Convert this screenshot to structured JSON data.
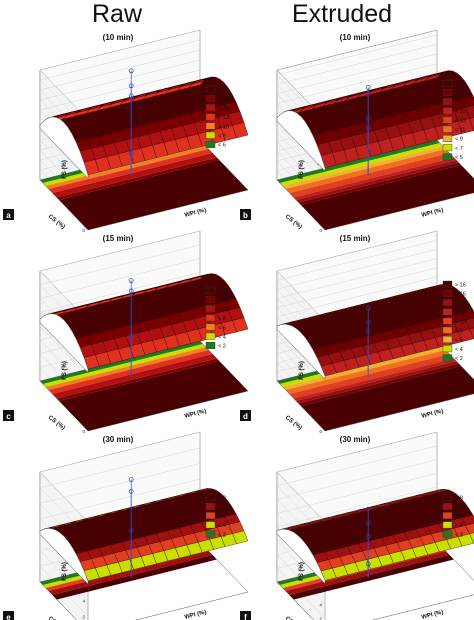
{
  "figure": {
    "column_titles": [
      "Raw",
      "Extruded"
    ]
  },
  "chart_data": [
    {
      "type": "surface3d",
      "panel_letter": "a",
      "title": "(10 min)",
      "zlabel": "FS (%)",
      "xlabel": "WPI (%)",
      "ylabel": "CS (%)",
      "zlim": [
        0,
        22
      ],
      "z_ticks": [
        0,
        2,
        4,
        6,
        8,
        10,
        12,
        14,
        16,
        18,
        20,
        22
      ],
      "surface_peak": 16.5,
      "surface_edge": 11,
      "legend": [
        "> 16",
        "< 16",
        "< 14",
        "< 12",
        "< 10",
        "< 8",
        "< 6"
      ],
      "legend_colors": [
        "#4a0000",
        "#7a0000",
        "#b01010",
        "#e03020",
        "#f08020",
        "#c8e000",
        "#1d7a1d"
      ],
      "observed_points": [
        21,
        16,
        18,
        4.5
      ],
      "legend_placement": "right"
    },
    {
      "type": "surface3d",
      "panel_letter": "b",
      "title": "(10 min)",
      "zlabel": "FS (%)",
      "xlabel": "WPI (%)",
      "ylabel": "CS (%)",
      "zlim": [
        0,
        23
      ],
      "z_ticks": [
        0,
        2,
        4,
        6,
        8,
        10,
        12,
        14,
        16,
        18,
        20,
        22
      ],
      "surface_peak": 18.5,
      "surface_edge": 13,
      "legend": [
        "> 20",
        "< 19",
        "< 17",
        "< 15",
        "< 13",
        "< 11",
        "< 9",
        "< 7",
        "< 5"
      ],
      "legend_colors": [
        "#4a0000",
        "#6e0000",
        "#961010",
        "#c02020",
        "#e04020",
        "#f07020",
        "#f0b030",
        "#c8e000",
        "#1d7a1d"
      ],
      "observed_points": [
        18.5,
        17,
        12,
        10
      ],
      "legend_placement": "right"
    },
    {
      "type": "surface3d",
      "panel_letter": "c",
      "title": "(15 min)",
      "zlabel": "FS (%)",
      "xlabel": "WPI (%)",
      "ylabel": "CS (%)",
      "zlim": [
        0,
        16
      ],
      "z_ticks": [
        0,
        2,
        4,
        6,
        8,
        10,
        12,
        14,
        16
      ],
      "surface_peak": 12.5,
      "surface_edge": 9,
      "legend": [
        "> 12",
        "< 12",
        "< 10",
        "< 8",
        "< 6",
        "< 4",
        "< 2"
      ],
      "legend_colors": [
        "#4a0000",
        "#7a0000",
        "#b01010",
        "#e03020",
        "#f08020",
        "#c8e000",
        "#1d7a1d"
      ],
      "observed_points": [
        14,
        12.5,
        6
      ],
      "legend_placement": "right"
    },
    {
      "type": "surface3d",
      "panel_letter": "d",
      "title": "(15 min)",
      "zlabel": "FS (%)",
      "xlabel": "WPI (%)",
      "ylabel": "CS (%)",
      "zlim": [
        0,
        24
      ],
      "z_ticks": [
        0,
        2,
        4,
        6,
        8,
        10,
        12,
        14,
        16,
        18,
        20,
        22,
        24
      ],
      "surface_peak": 16,
      "surface_edge": 12,
      "legend": [
        "> 16",
        "< 16",
        "< 14",
        "< 12",
        "< 10",
        "< 8",
        "< 6",
        "< 4",
        "< 2"
      ],
      "legend_colors": [
        "#4a0000",
        "#6e0000",
        "#961010",
        "#c02020",
        "#e04020",
        "#f07020",
        "#f0b030",
        "#c8e000",
        "#1d7a1d"
      ],
      "observed_points": [
        15,
        12,
        10
      ],
      "legend_placement": "right"
    },
    {
      "type": "surface3d",
      "panel_letter": "e",
      "title": "(30 min)",
      "zlabel": "FS (%)",
      "xlabel": "WPI (%)",
      "ylabel": "CS (%)",
      "zlim": [
        0,
        14
      ],
      "z_ticks": [
        0,
        2,
        4,
        6,
        8,
        10,
        12,
        14
      ],
      "surface_peak": 9,
      "surface_edge": 6.5,
      "legend": [
        "> 8",
        "< 8",
        "< 6",
        "< 4",
        "< 2"
      ],
      "legend_colors": [
        "#4a0000",
        "#a01010",
        "#e04020",
        "#c8e000",
        "#1d7a1d"
      ],
      "observed_points": [
        12.5,
        11,
        6
      ],
      "legend_placement": "right"
    },
    {
      "type": "surface3d",
      "panel_letter": "f",
      "title": "(30 min)",
      "zlabel": "FS (%)",
      "xlabel": "WPI (%)",
      "ylabel": "CS (%)",
      "zlim": [
        0,
        16
      ],
      "z_ticks": [
        0,
        2,
        4,
        6,
        8,
        10,
        12,
        14,
        16
      ],
      "surface_peak": 10,
      "surface_edge": 7.5,
      "legend": [
        "> 8",
        "< 8",
        "< 6",
        "< 4",
        "< 2"
      ],
      "legend_colors": [
        "#4a0000",
        "#a01010",
        "#e04020",
        "#c8e000",
        "#1d7a1d"
      ],
      "observed_points": [
        10,
        8,
        6,
        2
      ],
      "legend_placement": "right"
    }
  ]
}
